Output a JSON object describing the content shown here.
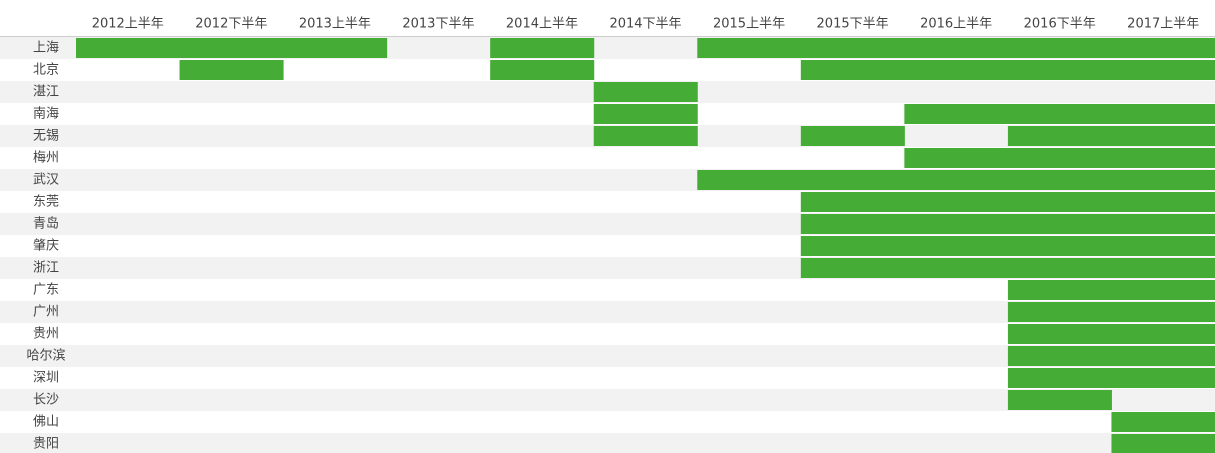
{
  "table": {
    "columns": [
      "2012上半年",
      "2012下半年",
      "2013上半年",
      "2013下半年",
      "2014上半年",
      "2014下半年",
      "2015上半年",
      "2015下半年",
      "2016上半年",
      "2016下半年",
      "2017上半年"
    ],
    "fill_color": "#45ad35",
    "stripe_color": "#f2f2f2",
    "rows": [
      {
        "label": "上海",
        "cells": [
          1,
          1,
          1,
          0,
          1,
          0,
          1,
          1,
          1,
          1,
          1
        ]
      },
      {
        "label": "北京",
        "cells": [
          0,
          1,
          0,
          0,
          1,
          0,
          0,
          1,
          1,
          1,
          1
        ]
      },
      {
        "label": "湛江",
        "cells": [
          0,
          0,
          0,
          0,
          0,
          1,
          0,
          0,
          0,
          0,
          0
        ]
      },
      {
        "label": "南海",
        "cells": [
          0,
          0,
          0,
          0,
          0,
          1,
          0,
          0,
          1,
          1,
          1
        ]
      },
      {
        "label": "无锡",
        "cells": [
          0,
          0,
          0,
          0,
          0,
          1,
          0,
          1,
          0,
          1,
          1
        ]
      },
      {
        "label": "梅州",
        "cells": [
          0,
          0,
          0,
          0,
          0,
          0,
          0,
          0,
          1,
          1,
          1
        ]
      },
      {
        "label": "武汉",
        "cells": [
          0,
          0,
          0,
          0,
          0,
          0,
          1,
          1,
          1,
          1,
          1
        ]
      },
      {
        "label": "东莞",
        "cells": [
          0,
          0,
          0,
          0,
          0,
          0,
          0,
          1,
          1,
          1,
          1
        ]
      },
      {
        "label": "青岛",
        "cells": [
          0,
          0,
          0,
          0,
          0,
          0,
          0,
          1,
          1,
          1,
          1
        ]
      },
      {
        "label": "肇庆",
        "cells": [
          0,
          0,
          0,
          0,
          0,
          0,
          0,
          1,
          1,
          1,
          1
        ]
      },
      {
        "label": "浙江",
        "cells": [
          0,
          0,
          0,
          0,
          0,
          0,
          0,
          1,
          1,
          1,
          1
        ]
      },
      {
        "label": "广东",
        "cells": [
          0,
          0,
          0,
          0,
          0,
          0,
          0,
          0,
          0,
          1,
          1
        ]
      },
      {
        "label": "广州",
        "cells": [
          0,
          0,
          0,
          0,
          0,
          0,
          0,
          0,
          0,
          1,
          1
        ]
      },
      {
        "label": "贵州",
        "cells": [
          0,
          0,
          0,
          0,
          0,
          0,
          0,
          0,
          0,
          1,
          1
        ]
      },
      {
        "label": "哈尔滨",
        "cells": [
          0,
          0,
          0,
          0,
          0,
          0,
          0,
          0,
          0,
          1,
          1
        ]
      },
      {
        "label": "深圳",
        "cells": [
          0,
          0,
          0,
          0,
          0,
          0,
          0,
          0,
          0,
          1,
          1
        ]
      },
      {
        "label": "长沙",
        "cells": [
          0,
          0,
          0,
          0,
          0,
          0,
          0,
          0,
          0,
          1,
          0
        ]
      },
      {
        "label": "佛山",
        "cells": [
          0,
          0,
          0,
          0,
          0,
          0,
          0,
          0,
          0,
          0,
          1
        ]
      },
      {
        "label": "贵阳",
        "cells": [
          0,
          0,
          0,
          0,
          0,
          0,
          0,
          0,
          0,
          0,
          1
        ]
      }
    ]
  }
}
